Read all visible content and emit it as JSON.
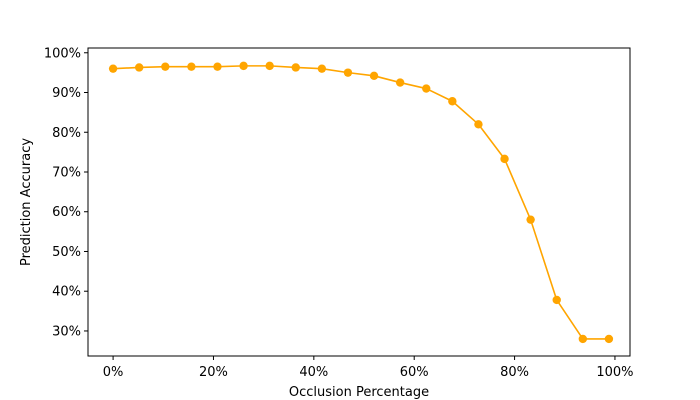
{
  "chart_data": {
    "type": "line",
    "xlabel": "Occlusion Percentage",
    "ylabel": "Prediction Accuracy",
    "xlim": [
      -0.05,
      1.03
    ],
    "ylim": [
      0.237,
      1.012
    ],
    "x_ticks": [
      0,
      0.2,
      0.4,
      0.6,
      0.8,
      1.0
    ],
    "x_tick_labels": [
      "0%",
      "20%",
      "40%",
      "60%",
      "80%",
      "100%"
    ],
    "y_ticks": [
      0.3,
      0.4,
      0.5,
      0.6,
      0.7,
      0.8,
      0.9,
      1.0
    ],
    "y_tick_labels": [
      "30%",
      "40%",
      "50%",
      "60%",
      "70%",
      "80%",
      "90%",
      "100%"
    ],
    "grid": false,
    "series": [
      {
        "color": "#FFA500",
        "marker": "circle",
        "x": [
          0.0,
          0.052,
          0.104,
          0.156,
          0.208,
          0.26,
          0.312,
          0.364,
          0.416,
          0.468,
          0.52,
          0.572,
          0.624,
          0.676,
          0.728,
          0.78,
          0.832,
          0.884,
          0.936,
          0.988
        ],
        "y": [
          0.96,
          0.963,
          0.965,
          0.965,
          0.965,
          0.967,
          0.967,
          0.963,
          0.96,
          0.95,
          0.942,
          0.925,
          0.91,
          0.878,
          0.82,
          0.733,
          0.58,
          0.378,
          0.28,
          0.28
        ]
      }
    ]
  }
}
